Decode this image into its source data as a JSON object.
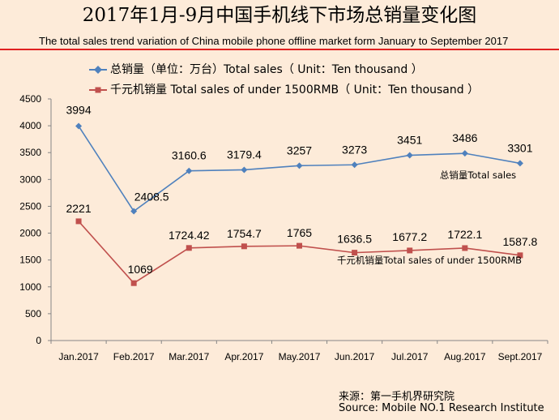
{
  "header": {
    "title": "2017年1月-9月中国手机线下市场总销量变化图",
    "subtitle": "The total sales trend variation of China mobile phone offline market form January to September 2017"
  },
  "source": {
    "line1": "来源：第一手机界研究院",
    "line2": "Source: Mobile NO.1 Research Institute"
  },
  "colors": {
    "background": "#fdebd9",
    "series_total": "#4f81bd",
    "series_under1500": "#c0504d",
    "title_rule": "#e02020"
  },
  "chart_data": {
    "type": "line",
    "title": "2017年1月-9月中国手机线下市场总销量变化图",
    "xlabel": "",
    "ylabel": "",
    "ylim": [
      0,
      4500
    ],
    "yticks": [
      0,
      500,
      1000,
      1500,
      2000,
      2500,
      3000,
      3500,
      4000,
      4500
    ],
    "grid": false,
    "legend_position": "top",
    "categories": [
      "Jan.2017",
      "Feb.2017",
      "Mar.2017",
      "Apr.2017",
      "May.2017",
      "Jun.2017",
      "Jul.2017",
      "Aug.2017",
      "Sept.2017"
    ],
    "series": [
      {
        "name": "总销量（单位：万台）Total sales（ Unit：Ten thousand ）",
        "marker": "diamond",
        "color": "#4f81bd",
        "values": [
          3994,
          2408.5,
          3160.6,
          3179.4,
          3257,
          3273,
          3451,
          3486,
          3301
        ],
        "labels": [
          "3994",
          "2408.5",
          "3160.6",
          "3179.4",
          "3257",
          "3273",
          "3451",
          "3486",
          "3301"
        ]
      },
      {
        "name": "千元机销量 Total sales of under 1500RMB（ Unit：Ten thousand ）",
        "marker": "square",
        "color": "#c0504d",
        "values": [
          2221,
          1069,
          1724.42,
          1754.7,
          1765,
          1636.5,
          1677.2,
          1722.1,
          1587.8
        ],
        "labels": [
          "2221",
          "1069",
          "1724.42",
          "1754.7",
          "1765",
          "1636.5",
          "1677.2",
          "1722.1",
          "1587.8"
        ]
      }
    ],
    "annotations": [
      "总销量Total sales",
      "千元机销量Total sales of under 1500RMB"
    ]
  }
}
